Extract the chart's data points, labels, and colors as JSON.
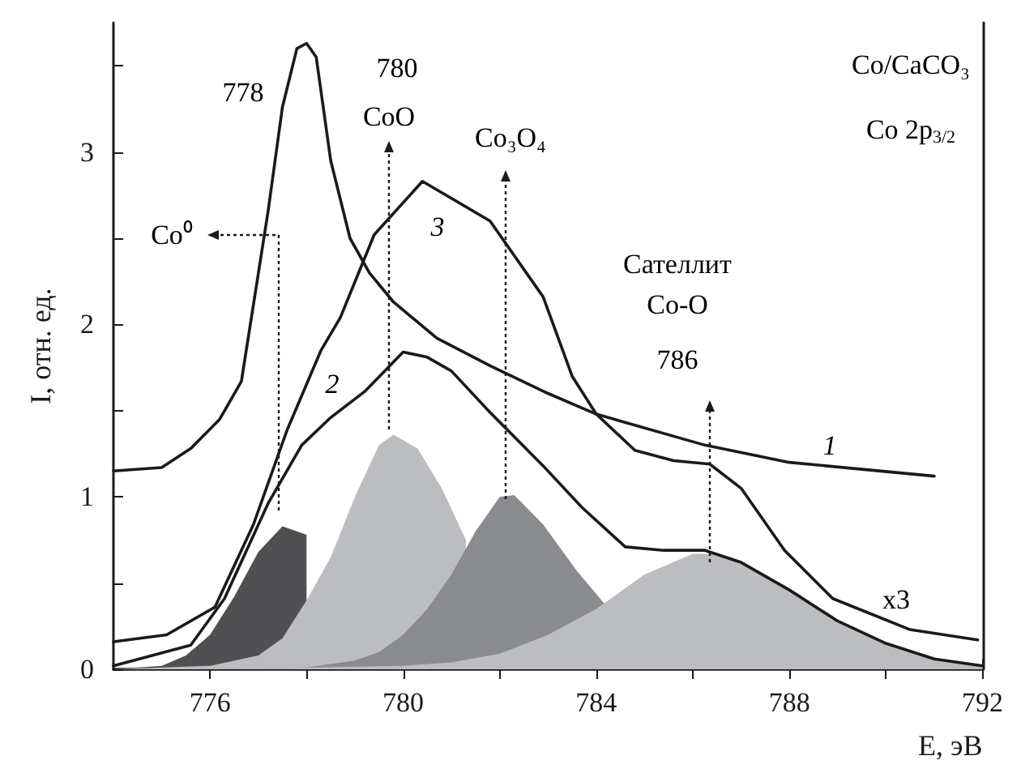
{
  "chart_data": {
    "type": "line",
    "xlabel": "E, эВ",
    "ylabel": "I, отн. ед.",
    "xlim": [
      774,
      792
    ],
    "xticks": [
      776,
      {
        "value": 778,
        "label": null
      },
      780,
      {
        "value": 782,
        "label": null
      },
      784,
      {
        "value": 786,
        "label": null
      },
      788,
      {
        "value": 790,
        "label": null
      },
      792
    ],
    "ylim": [
      0,
      3.75
    ],
    "yticks": [
      0,
      {
        "value": 0.5,
        "label": null
      },
      1,
      {
        "value": 1.5,
        "label": null
      },
      2,
      {
        "value": 2.5,
        "label": null
      },
      3,
      {
        "value": 3.5,
        "label": null
      }
    ],
    "marker": "none",
    "line_style": "solid",
    "series": [
      {
        "type": "area",
        "color": "#505052",
        "x": [
          774,
          775,
          775.5,
          776,
          776.5,
          777,
          777.5,
          778
        ],
        "values": [
          0,
          0.02,
          0.08,
          0.2,
          0.42,
          0.68,
          0.83,
          0.78
        ]
      },
      {
        "type": "area",
        "color": "#bcbdc0",
        "x": [
          774,
          776,
          777,
          777.5,
          778,
          778.5,
          779,
          779.5,
          779.8,
          780.3,
          780.8,
          781.3
        ],
        "values": [
          0,
          0.02,
          0.08,
          0.18,
          0.4,
          0.65,
          1.0,
          1.3,
          1.36,
          1.28,
          1.05,
          0.75
        ]
      },
      {
        "type": "area",
        "color": "#8a8b8e",
        "x": [
          776,
          778,
          779,
          779.5,
          780,
          780.5,
          781,
          781.5,
          782,
          782.3,
          782.9,
          783.6,
          784.2
        ],
        "values": [
          0,
          0.01,
          0.05,
          0.1,
          0.2,
          0.35,
          0.55,
          0.8,
          1.0,
          1.01,
          0.84,
          0.57,
          0.37
        ]
      },
      {
        "type": "area",
        "color": "#bcbdc0",
        "x": [
          776,
          780,
          781,
          782,
          783,
          784,
          785,
          786,
          786.5,
          787,
          788,
          789,
          790,
          791,
          792
        ],
        "values": [
          0,
          0.02,
          0.04,
          0.09,
          0.2,
          0.35,
          0.55,
          0.67,
          0.67,
          0.62,
          0.46,
          0.28,
          0.15,
          0.06,
          0.02
        ]
      },
      {
        "type": "line",
        "color": "#1a1a1a",
        "x": [
          774,
          775,
          775.6,
          776.2,
          776.65,
          777.2,
          777.5,
          777.8,
          778,
          778.2,
          778.5,
          778.9,
          779.3,
          779.8,
          780.7,
          781.8,
          783,
          784,
          786.25,
          788,
          791
        ],
        "values": [
          1.15,
          1.17,
          1.28,
          1.45,
          1.67,
          2.65,
          3.26,
          3.6,
          3.63,
          3.55,
          2.95,
          2.5,
          2.3,
          2.13,
          1.92,
          1.76,
          1.6,
          1.48,
          1.3,
          1.2,
          1.12
        ]
      },
      {
        "type": "line",
        "color": "#1a1a1a",
        "x": [
          774,
          775.6,
          776.3,
          777.2,
          777.9,
          778.5,
          779.2,
          780,
          780.5,
          781,
          781.8,
          782.9,
          783.7,
          784.6,
          785.4,
          786.25,
          787,
          788,
          789,
          790,
          791,
          792
        ],
        "values": [
          0.02,
          0.14,
          0.41,
          0.96,
          1.3,
          1.46,
          1.61,
          1.84,
          1.81,
          1.73,
          1.49,
          1.18,
          0.94,
          0.71,
          0.69,
          0.69,
          0.62,
          0.46,
          0.28,
          0.15,
          0.06,
          0.02
        ]
      },
      {
        "type": "line",
        "color": "#1a1a1a",
        "x": [
          774,
          775.1,
          776.1,
          776.9,
          777.6,
          778.3,
          778.7,
          779.4,
          780.4,
          781.8,
          782.9,
          783.5,
          784,
          784.8,
          785.6,
          786.35,
          787,
          787.9,
          788.9,
          790.5,
          791.9
        ],
        "values": [
          0.16,
          0.2,
          0.36,
          0.84,
          1.39,
          1.85,
          2.04,
          2.52,
          2.83,
          2.6,
          2.16,
          1.7,
          1.48,
          1.27,
          1.21,
          1.19,
          1.05,
          0.69,
          0.41,
          0.23,
          0.17
        ]
      }
    ],
    "annotations": [
      "Co/CaCO₃",
      "Co 2p$_{3/2}$",
      "778",
      "1",
      "2",
      "3",
      "x3",
      "780",
      "CoO",
      "Co₃O₄",
      "Co⁰",
      "Сателлит",
      "Co-O",
      "786"
    ]
  }
}
